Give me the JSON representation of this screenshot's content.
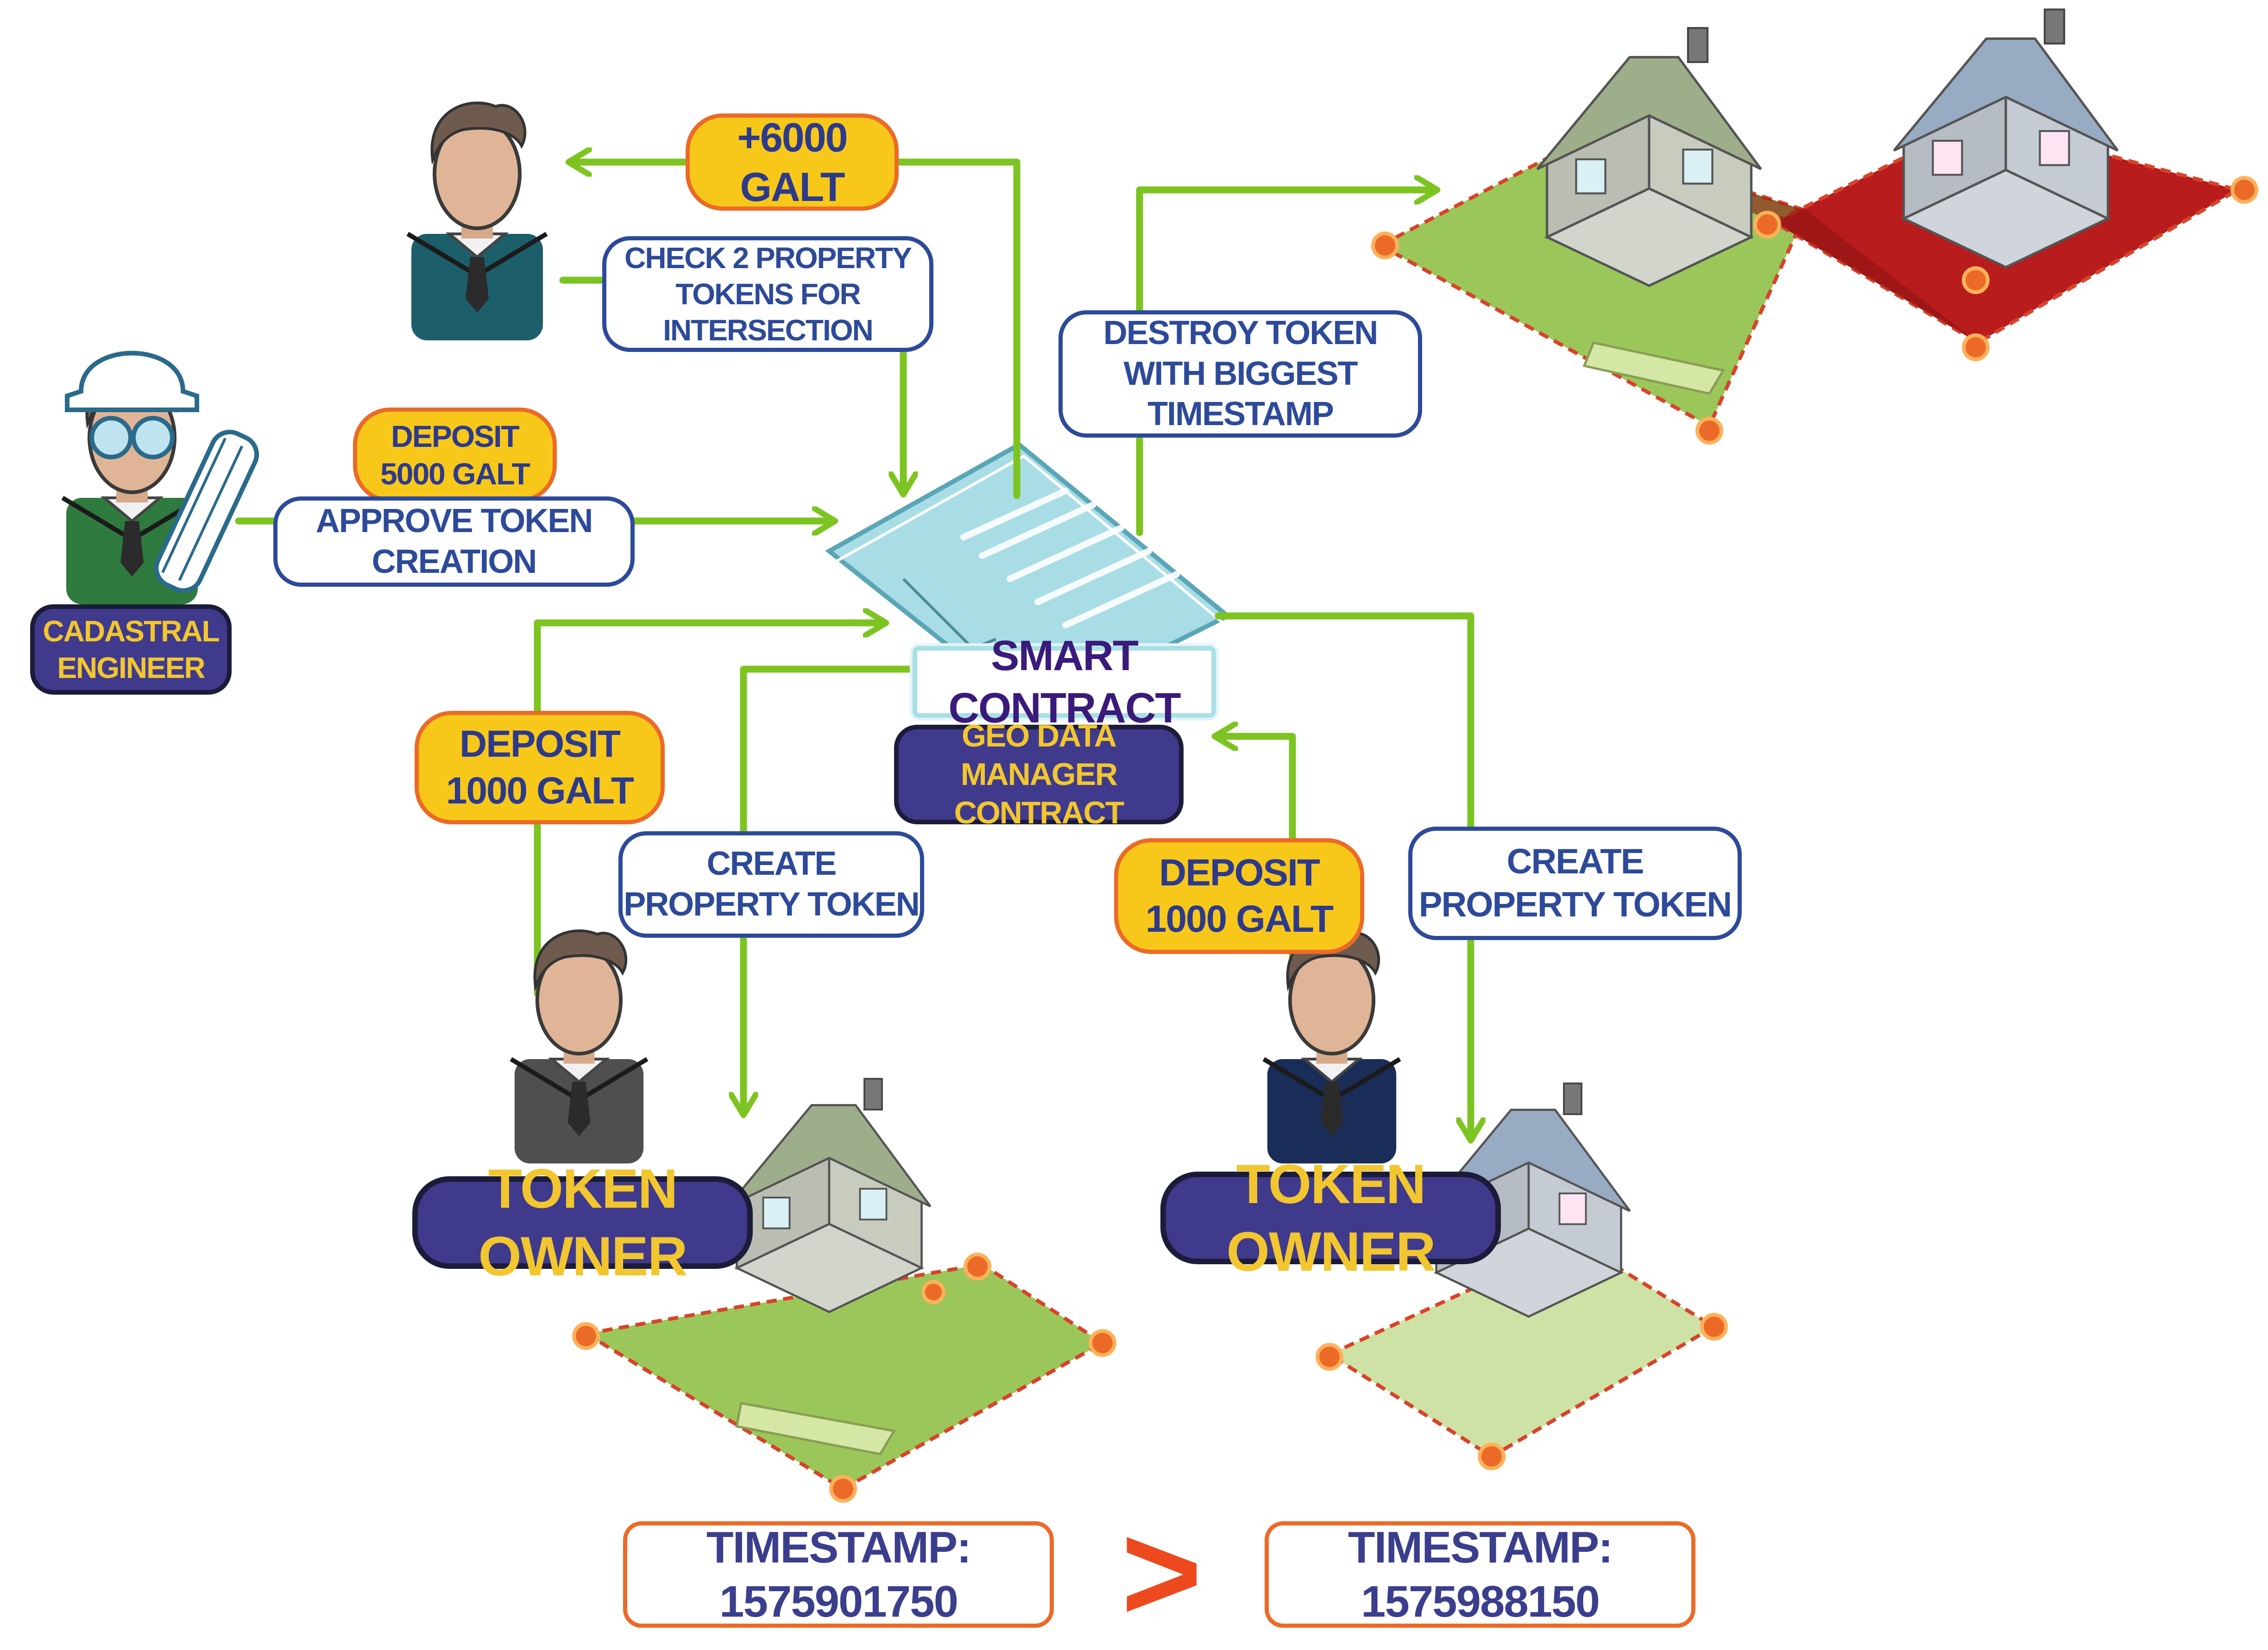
{
  "labels": {
    "galt_reward": "+6000 GALT",
    "check_tokens": "CHECK 2 PROPERTY\nTOKENS FOR INTERSECTION",
    "destroy_token": "DESTROY TOKEN\nWITH BIGGEST TIMESTAMP",
    "deposit_engineer": "DEPOSIT\n5000 GALT",
    "approve_token": "APPROVE TOKEN CREATION",
    "cadastral_engineer": "CADASTRAL\nENGINEER",
    "smart_contract": "SMART CONTRACT",
    "geo_manager": "GEO DATA MANAGER\nCONTRACT",
    "deposit_left": "DEPOSIT\n1000 GALT",
    "deposit_right": "DEPOSIT\n1000 GALT",
    "create_left": "CREATE\nPROPERTY TOKEN",
    "create_right": "CREATE\nPROPERTY TOKEN",
    "owner_left": "TOKEN OWNER",
    "owner_right": "TOKEN OWNER",
    "timestamp_left": "TIMESTAMP: 1575901750",
    "timestamp_right": "TIMESTAMP: 1575988150",
    "comparison": ">"
  },
  "colors": {
    "arrow": "#7dc422",
    "label_border_blue": "#2d4a9a",
    "deposit_fill": "#f7c81a",
    "deposit_border": "#ec6a27",
    "role_fill": "#403a8d",
    "role_text": "#f2c62f",
    "parcel_green": "#9bc75a",
    "parcel_red": "#b81c1c"
  },
  "icons": {
    "top_user": "user-avatar-icon",
    "engineer": "engineer-hardhat-icon",
    "owner_left": "user-avatar-icon",
    "owner_right": "user-avatar-icon",
    "contract": "smart-contract-document-icon",
    "houses": "house-on-parcel-icon"
  }
}
